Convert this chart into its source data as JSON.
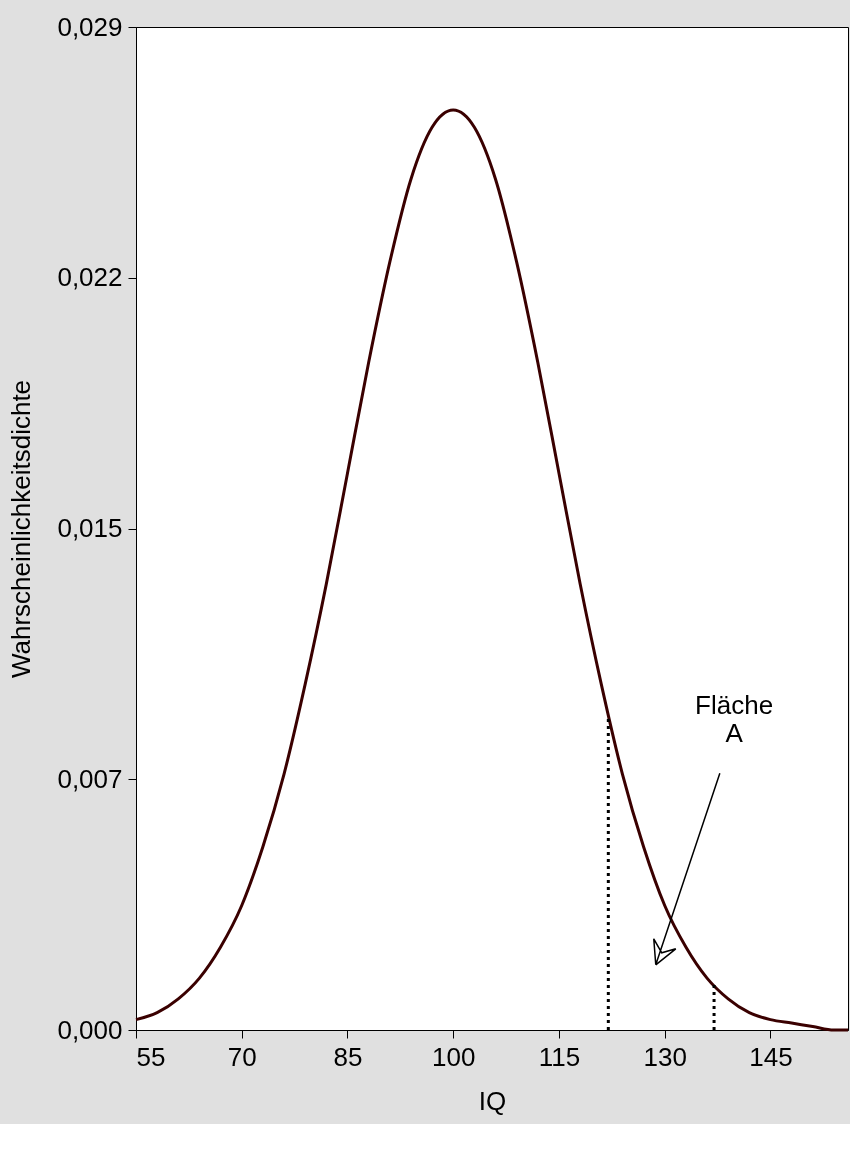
{
  "chart_data": {
    "type": "line",
    "xlabel": "IQ",
    "ylabel": "Wahrscheinlichkeitsdichte",
    "xlim": [
      55,
      156
    ],
    "xticks": [
      55,
      70,
      85,
      100,
      115,
      130,
      145
    ],
    "ylim": [
      0,
      0.029
    ],
    "yticks": [
      {
        "value": 0,
        "label": "0,000"
      },
      {
        "value": 0.00725,
        "label": "0,007"
      },
      {
        "value": 0.0145,
        "label": "0,015"
      },
      {
        "value": 0.02175,
        "label": "0,022"
      },
      {
        "value": 0.029,
        "label": "0,029"
      }
    ],
    "grid": false,
    "marker": "none",
    "series": [
      {
        "color": "#3a0000",
        "line_style": "solid",
        "x": [
          55,
          58,
          61,
          64,
          67,
          70,
          73,
          76,
          79,
          82,
          85,
          88,
          91,
          94,
          97,
          100,
          103,
          106,
          109,
          112,
          115,
          118,
          121,
          124,
          127,
          130,
          133,
          136,
          139,
          142,
          145,
          148,
          151,
          154,
          156
        ],
        "values": [
          0.0003,
          0.0005,
          0.0009,
          0.0015,
          0.0024,
          0.0036,
          0.0053,
          0.0074,
          0.01,
          0.0129,
          0.0161,
          0.0193,
          0.0222,
          0.0246,
          0.0261,
          0.0266,
          0.0261,
          0.0246,
          0.0222,
          0.0193,
          0.0161,
          0.0129,
          0.01,
          0.0074,
          0.0053,
          0.0036,
          0.0024,
          0.0015,
          0.0009,
          0.0005,
          0.0003,
          0.0002,
          0.0001,
          0,
          0
        ]
      },
      {
        "color": "#000000",
        "line_style": "dotted",
        "x": [
          122,
          122
        ],
        "values": [
          0,
          0.0091
        ]
      },
      {
        "color": "#000000",
        "line_style": "dotted",
        "x": [
          137,
          137
        ],
        "values": [
          0,
          0.0013
        ]
      }
    ],
    "annotations": [
      "Fläche\nA"
    ]
  }
}
